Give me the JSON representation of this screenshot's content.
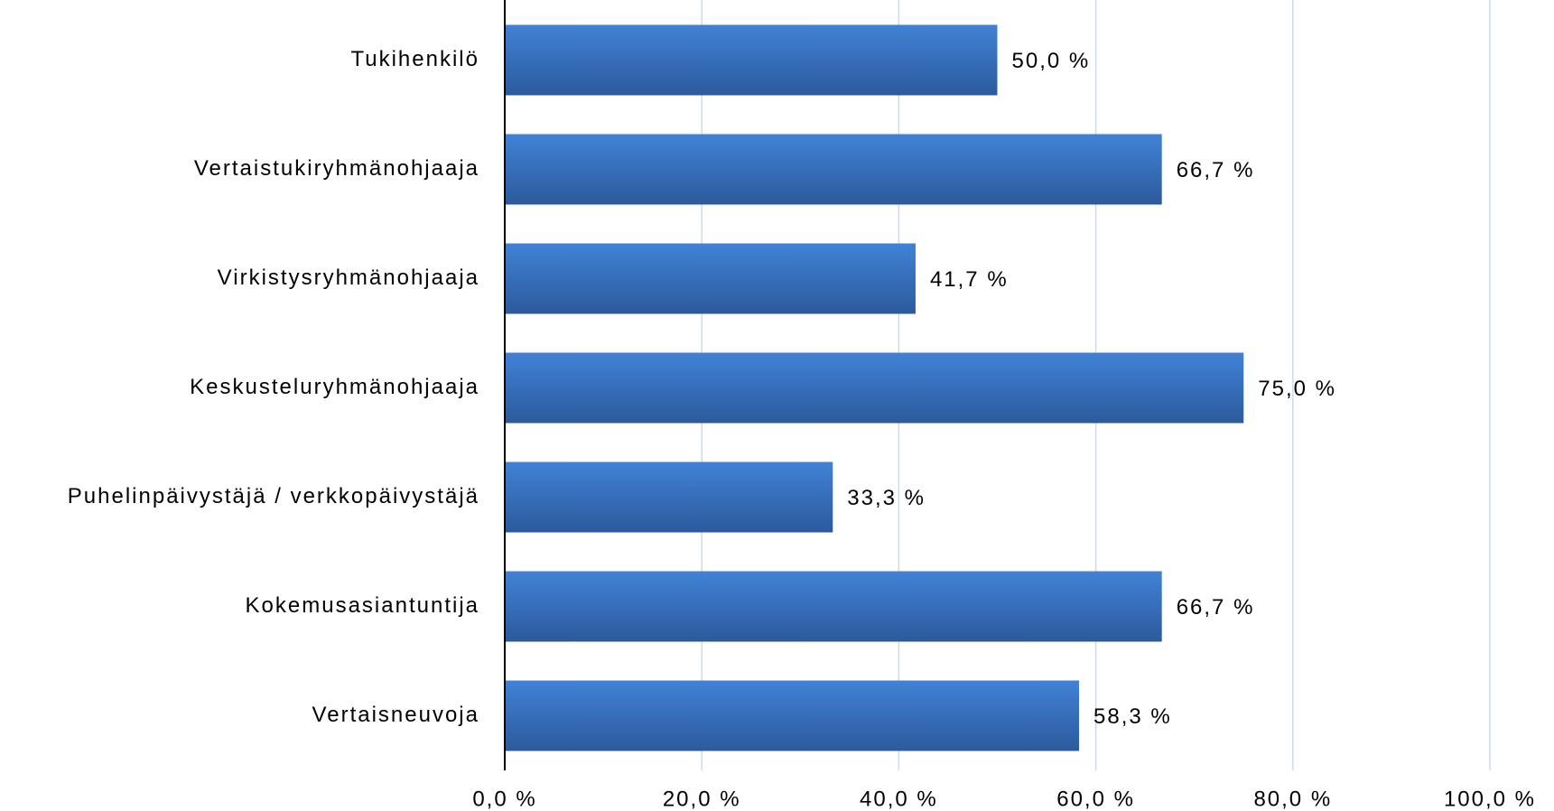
{
  "chart_data": {
    "type": "bar",
    "orientation": "horizontal",
    "categories": [
      "Tukihenkilö",
      "Vertaistukiryhmänohjaaja",
      "Virkistysryhmänohjaaja",
      "Keskusteluryhmänohjaaja",
      "Puhelinpäivystäjä / verkkopäivystäjä",
      "Kokemusasiantuntija",
      "Vertaisneuvoja"
    ],
    "values": [
      50.0,
      66.7,
      41.7,
      75.0,
      33.3,
      66.7,
      58.3
    ],
    "value_labels": [
      "50,0 %",
      "66,7 %",
      "41,7 %",
      "75,0 %",
      "33,3 %",
      "66,7 %",
      "58,3 %"
    ],
    "color": "#3a74c4",
    "xlim": [
      0,
      100
    ],
    "xticks": [
      {
        "value": 0,
        "label": "0,0 %"
      },
      {
        "value": 20,
        "label": "20,0 %"
      },
      {
        "value": 40,
        "label": "40,0 %"
      },
      {
        "value": 60,
        "label": "60,0 %"
      },
      {
        "value": 80,
        "label": "80,0 %"
      },
      {
        "value": 100,
        "label": "100,0 %"
      }
    ],
    "grid": true
  }
}
